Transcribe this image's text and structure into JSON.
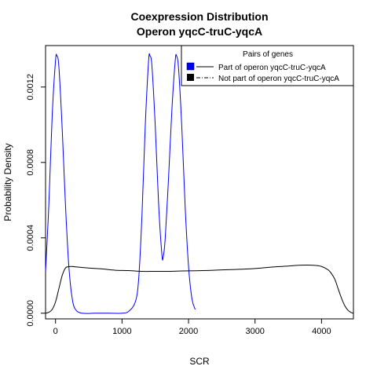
{
  "chart_data": {
    "type": "line",
    "title": "Coexpression Distribution",
    "subtitle": "Operon yqcC-truC-yqcA",
    "xlabel": "SCR",
    "ylabel": "Probability Density",
    "xlim": [
      -150,
      4480
    ],
    "ylim": [
      -3e-05,
      0.00142
    ],
    "x_ticks": [
      0,
      1000,
      2000,
      3000,
      4000
    ],
    "x_tick_labels": [
      "0",
      "1000",
      "2000",
      "3000",
      "4000"
    ],
    "y_ticks": [
      0.0,
      0.0004,
      0.0008,
      0.0012
    ],
    "y_tick_labels": [
      "0.0000",
      "0.0004",
      "0.0008",
      "0.0012"
    ],
    "grid": false,
    "legend": {
      "title": "Pairs of genes",
      "placement": "top-right",
      "entries": [
        {
          "label": "Part of operon yqcC-truC-yqcA",
          "color": "#0000ff",
          "line": "solid"
        },
        {
          "label": "Not part of operon yqcC-truC-yqcA",
          "color": "#000000",
          "line": "dashdot"
        }
      ]
    },
    "series": [
      {
        "name": "Part of operon yqcC-truC-yqcA",
        "color": "#0000ff",
        "x": [
          -150,
          -100,
          -50,
          0,
          20,
          50,
          100,
          150,
          200,
          250,
          300,
          400,
          600,
          800,
          1000,
          1100,
          1200,
          1250,
          1300,
          1350,
          1400,
          1420,
          1450,
          1500,
          1550,
          1600,
          1620,
          1650,
          1700,
          1750,
          1800,
          1820,
          1850,
          1900,
          1950,
          2000,
          2050,
          2100
        ],
        "y": [
          0.00022,
          0.00058,
          0.00105,
          0.00134,
          0.001365,
          0.00131,
          0.00098,
          0.00057,
          0.00025,
          8e-05,
          2e-05,
          0.0,
          0.0,
          0.0,
          0.0,
          1e-05,
          6e-05,
          0.00018,
          0.00052,
          0.001,
          0.00134,
          0.001365,
          0.00131,
          0.00099,
          0.00058,
          0.00031,
          0.0003,
          0.0004,
          0.00072,
          0.00108,
          0.00134,
          0.001365,
          0.0013,
          0.00098,
          0.00056,
          0.00025,
          8e-05,
          2e-05
        ]
      },
      {
        "name": "Not part of operon yqcC-truC-yqcA",
        "color": "#000000",
        "x": [
          -150,
          -100,
          -50,
          0,
          50,
          100,
          150,
          200,
          250,
          300,
          500,
          700,
          900,
          1100,
          1300,
          1500,
          1700,
          1900,
          2100,
          2300,
          2500,
          2700,
          2900,
          3100,
          3300,
          3500,
          3700,
          3900,
          4000,
          4100,
          4150,
          4200,
          4250,
          4300,
          4350,
          4400,
          4450,
          4480
        ],
        "y": [
          0.0,
          5e-06,
          2e-05,
          6e-05,
          0.00013,
          0.0002,
          0.00024,
          0.000247,
          0.000248,
          0.000246,
          0.00024,
          0.000235,
          0.000228,
          0.000226,
          0.000222,
          0.000222,
          0.000222,
          0.000224,
          0.000225,
          0.000227,
          0.00023,
          0.000232,
          0.000235,
          0.00024,
          0.000246,
          0.00025,
          0.000255,
          0.000254,
          0.000248,
          0.00023,
          0.00021,
          0.00018,
          0.00013,
          8e-05,
          4e-05,
          1.5e-05,
          3e-06,
          0.0
        ]
      }
    ]
  }
}
